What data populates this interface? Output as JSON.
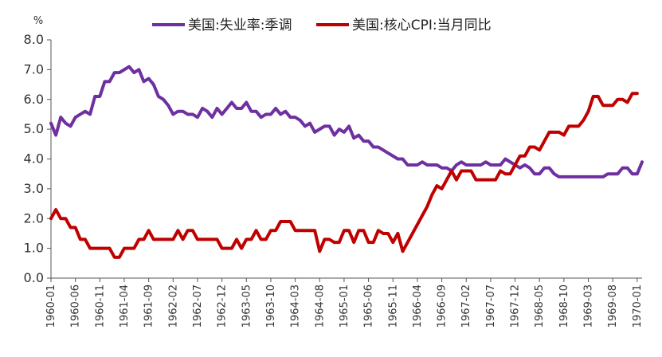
{
  "chart_data": {
    "type": "line",
    "title": "",
    "xlabel": "",
    "ylabel": "%",
    "ylim": [
      0,
      8
    ],
    "yticks": [
      "0.0",
      "1.0",
      "2.0",
      "3.0",
      "4.0",
      "5.0",
      "6.0",
      "7.0",
      "8.0"
    ],
    "x_tick_labels": [
      "1960-01",
      "1960-06",
      "1960-11",
      "1961-04",
      "1961-09",
      "1962-02",
      "1962-07",
      "1962-12",
      "1963-05",
      "1963-10",
      "1964-03",
      "1964-08",
      "1965-01",
      "1965-06",
      "1965-11",
      "1966-04",
      "1966-09",
      "1967-02",
      "1967-07",
      "1967-12",
      "1968-05",
      "1968-10",
      "1969-03",
      "1969-08",
      "1970-01"
    ],
    "x_start": "1960-01",
    "legend_position": "top-center",
    "grid": false,
    "series": [
      {
        "name": "美国:失业率:季调",
        "color": "#6E30A0",
        "values": [
          5.2,
          4.8,
          5.4,
          5.2,
          5.1,
          5.4,
          5.5,
          5.6,
          5.5,
          6.1,
          6.1,
          6.6,
          6.6,
          6.9,
          6.9,
          7.0,
          7.1,
          6.9,
          7.0,
          6.6,
          6.7,
          6.5,
          6.1,
          6.0,
          5.8,
          5.5,
          5.6,
          5.6,
          5.5,
          5.5,
          5.4,
          5.7,
          5.6,
          5.4,
          5.7,
          5.5,
          5.7,
          5.9,
          5.7,
          5.7,
          5.9,
          5.6,
          5.6,
          5.4,
          5.5,
          5.5,
          5.7,
          5.5,
          5.6,
          5.4,
          5.4,
          5.3,
          5.1,
          5.2,
          4.9,
          5.0,
          5.1,
          5.1,
          4.8,
          5.0,
          4.9,
          5.1,
          4.7,
          4.8,
          4.6,
          4.6,
          4.4,
          4.4,
          4.3,
          4.2,
          4.1,
          4.0,
          4.0,
          3.8,
          3.8,
          3.8,
          3.9,
          3.8,
          3.8,
          3.8,
          3.7,
          3.7,
          3.6,
          3.8,
          3.9,
          3.8,
          3.8,
          3.8,
          3.8,
          3.9,
          3.8,
          3.8,
          3.8,
          4.0,
          3.9,
          3.8,
          3.7,
          3.8,
          3.7,
          3.5,
          3.5,
          3.7,
          3.7,
          3.5,
          3.4,
          3.4,
          3.4,
          3.4,
          3.4,
          3.4,
          3.4,
          3.4,
          3.4,
          3.4,
          3.5,
          3.5,
          3.5,
          3.7,
          3.7,
          3.5,
          3.5,
          3.9
        ]
      },
      {
        "name": "美国:核心CPI:当月同比",
        "color": "#C00000",
        "values": [
          2.0,
          2.3,
          2.0,
          2.0,
          1.7,
          1.7,
          1.3,
          1.3,
          1.0,
          1.0,
          1.0,
          1.0,
          1.0,
          0.7,
          0.7,
          1.0,
          1.0,
          1.0,
          1.3,
          1.3,
          1.6,
          1.3,
          1.3,
          1.3,
          1.3,
          1.3,
          1.6,
          1.3,
          1.6,
          1.6,
          1.3,
          1.3,
          1.3,
          1.3,
          1.3,
          1.0,
          1.0,
          1.0,
          1.3,
          1.0,
          1.3,
          1.3,
          1.6,
          1.3,
          1.3,
          1.6,
          1.6,
          1.9,
          1.9,
          1.9,
          1.6,
          1.6,
          1.6,
          1.6,
          1.6,
          0.9,
          1.3,
          1.3,
          1.2,
          1.2,
          1.6,
          1.6,
          1.2,
          1.6,
          1.6,
          1.2,
          1.2,
          1.6,
          1.5,
          1.5,
          1.2,
          1.5,
          0.9,
          1.2,
          1.5,
          1.8,
          2.1,
          2.4,
          2.8,
          3.1,
          3.0,
          3.3,
          3.6,
          3.3,
          3.6,
          3.6,
          3.6,
          3.3,
          3.3,
          3.3,
          3.3,
          3.3,
          3.6,
          3.5,
          3.5,
          3.8,
          4.1,
          4.1,
          4.4,
          4.4,
          4.3,
          4.6,
          4.9,
          4.9,
          4.9,
          4.8,
          5.1,
          5.1,
          5.1,
          5.3,
          5.6,
          6.1,
          6.1,
          5.8,
          5.8,
          5.8,
          6.0,
          6.0,
          5.9,
          6.2,
          6.2
        ]
      }
    ]
  }
}
